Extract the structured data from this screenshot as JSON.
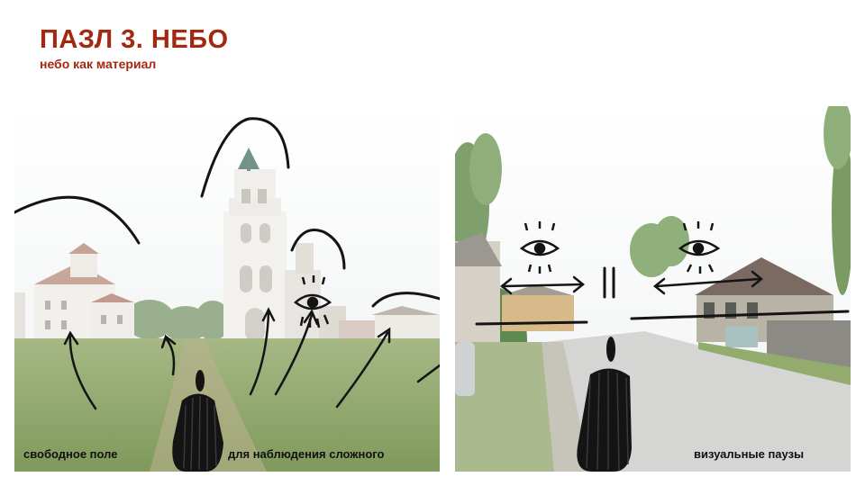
{
  "slide": {
    "title": "ПАЗЛ 3. НЕБО",
    "subtitle": "небо как материал"
  },
  "left_photo": {
    "caption_1": "свободное  поле",
    "caption_2": "для наблюдения сложного"
  },
  "right_photo": {
    "caption": "визуальные паузы"
  },
  "colors": {
    "accent": "#a3280f",
    "sky": "#f3f5f6",
    "grass": "#8ea66a",
    "ink": "#141414"
  }
}
